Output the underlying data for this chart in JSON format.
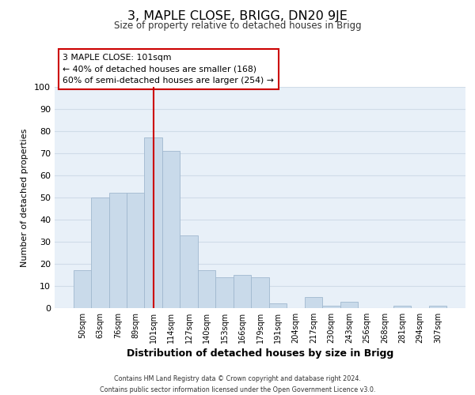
{
  "title": "3, MAPLE CLOSE, BRIGG, DN20 9JE",
  "subtitle": "Size of property relative to detached houses in Brigg",
  "xlabel": "Distribution of detached houses by size in Brigg",
  "ylabel": "Number of detached properties",
  "bar_labels": [
    "50sqm",
    "63sqm",
    "76sqm",
    "89sqm",
    "101sqm",
    "114sqm",
    "127sqm",
    "140sqm",
    "153sqm",
    "166sqm",
    "179sqm",
    "191sqm",
    "204sqm",
    "217sqm",
    "230sqm",
    "243sqm",
    "256sqm",
    "268sqm",
    "281sqm",
    "294sqm",
    "307sqm"
  ],
  "bar_values": [
    17,
    50,
    52,
    52,
    77,
    71,
    33,
    17,
    14,
    15,
    14,
    2,
    0,
    5,
    1,
    3,
    0,
    0,
    1,
    0,
    1
  ],
  "bar_color": "#c9daea",
  "bar_edge_color": "#a0b8cf",
  "highlight_bar_index": 4,
  "highlight_line_color": "#cc0000",
  "annotation_text": "3 MAPLE CLOSE: 101sqm\n← 40% of detached houses are smaller (168)\n60% of semi-detached houses are larger (254) →",
  "annotation_box_color": "#ffffff",
  "annotation_box_edge_color": "#cc0000",
  "ylim": [
    0,
    100
  ],
  "yticks": [
    0,
    10,
    20,
    30,
    40,
    50,
    60,
    70,
    80,
    90,
    100
  ],
  "grid_color": "#d0dce8",
  "background_color": "#e8f0f8",
  "footer_line1": "Contains HM Land Registry data © Crown copyright and database right 2024.",
  "footer_line2": "Contains public sector information licensed under the Open Government Licence v3.0."
}
